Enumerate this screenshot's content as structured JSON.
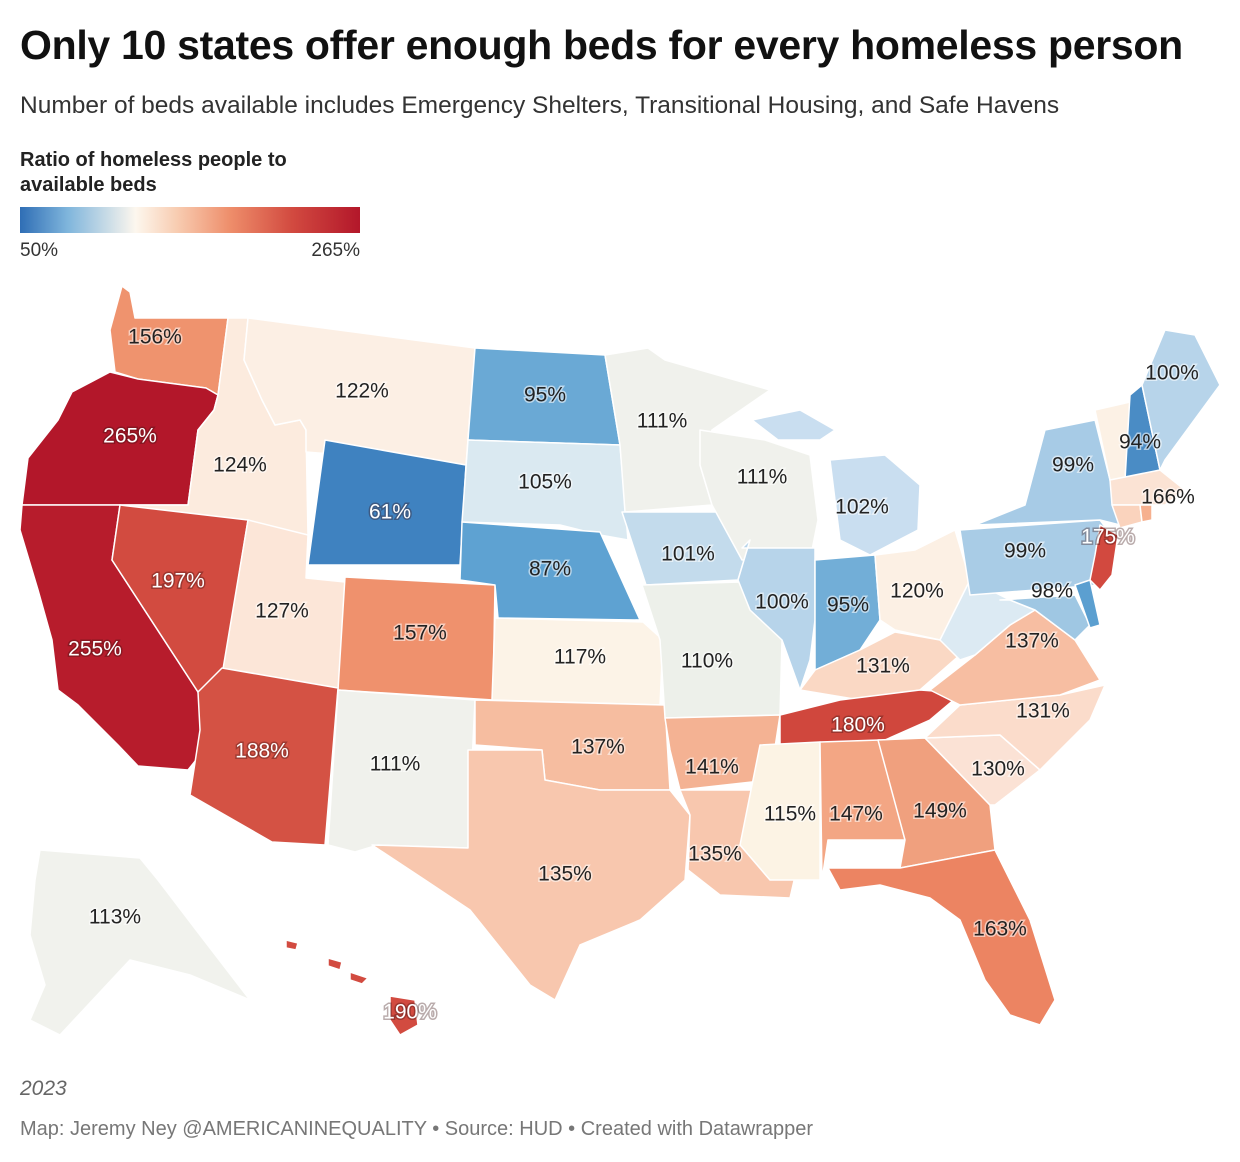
{
  "header": {
    "title": "Only 10 states offer enough beds for every homeless person",
    "subtitle": "Number of beds available includes Emergency Shelters, Transitional Housing, and Safe Havens"
  },
  "legend": {
    "title": "Ratio of homeless people to available beds",
    "min_label": "50%",
    "max_label": "265%",
    "min_value": 50,
    "max_value": 265,
    "colors": [
      "#2f6eb5",
      "#7fb5dc",
      "#fdf7ee",
      "#f8cdb2",
      "#ee8d6a",
      "#d24a40",
      "#b3172a"
    ]
  },
  "footer": {
    "year": "2023",
    "credit": "Map: Jeremy Ney @AMERICANINEQUALITY • Source: HUD • Created with Datawrapper"
  },
  "chart_data": {
    "type": "choropleth",
    "unit": "%",
    "states": [
      {
        "state": "WA",
        "value": 156,
        "label": "156%",
        "color": "#ef936e"
      },
      {
        "state": "OR",
        "value": 265,
        "label": "265%",
        "color": "#b3172a"
      },
      {
        "state": "CA",
        "value": 255,
        "label": "255%",
        "color": "#b71c2c"
      },
      {
        "state": "ID",
        "value": 124,
        "label": "124%",
        "color": "#fcebde"
      },
      {
        "state": "MT",
        "value": 122,
        "label": "122%",
        "color": "#fcefe4"
      },
      {
        "state": "NV",
        "value": 197,
        "label": "197%",
        "color": "#d24b40"
      },
      {
        "state": "UT",
        "value": 127,
        "label": "127%",
        "color": "#fce6d8"
      },
      {
        "state": "WY",
        "value": 61,
        "label": "61%",
        "color": "#3f82c0"
      },
      {
        "state": "CO",
        "value": 157,
        "label": "157%",
        "color": "#ef916d"
      },
      {
        "state": "AZ",
        "value": 188,
        "label": "188%",
        "color": "#d45244"
      },
      {
        "state": "NM",
        "value": 111,
        "label": "111%",
        "color": "#f0f1ec"
      },
      {
        "state": "ND",
        "value": 95,
        "label": "95%",
        "color": "#6aa9d5"
      },
      {
        "state": "SD",
        "value": 105,
        "label": "105%",
        "color": "#dae9f1"
      },
      {
        "state": "NE",
        "value": 87,
        "label": "87%",
        "color": "#5ea2d2"
      },
      {
        "state": "KS",
        "value": 117,
        "label": "117%",
        "color": "#fcf3e7"
      },
      {
        "state": "OK",
        "value": 137,
        "label": "137%",
        "color": "#f6bda0"
      },
      {
        "state": "TX",
        "value": 135,
        "label": "135%",
        "color": "#f8c7ae"
      },
      {
        "state": "MN",
        "value": 111,
        "label": "111%",
        "color": "#f0f1ec"
      },
      {
        "state": "IA",
        "value": 101,
        "label": "101%",
        "color": "#c3dbec"
      },
      {
        "state": "MO",
        "value": 110,
        "label": "110%",
        "color": "#edf0ea"
      },
      {
        "state": "AR",
        "value": 141,
        "label": "141%",
        "color": "#f4b293"
      },
      {
        "state": "LA",
        "value": 135,
        "label": "135%",
        "color": "#f8c7ae"
      },
      {
        "state": "WI",
        "value": 111,
        "label": "111%",
        "color": "#f0f1ec"
      },
      {
        "state": "IL",
        "value": 100,
        "label": "100%",
        "color": "#b7d4ea"
      },
      {
        "state": "MI",
        "value": 102,
        "label": "102%",
        "color": "#c9def0"
      },
      {
        "state": "IN",
        "value": 95,
        "label": "95%",
        "color": "#72aed7"
      },
      {
        "state": "OH",
        "value": 120,
        "label": "120%",
        "color": "#fcf0e4"
      },
      {
        "state": "KY",
        "value": 131,
        "label": "131%",
        "color": "#fad8c4"
      },
      {
        "state": "TN",
        "value": 180,
        "label": "180%",
        "color": "#d0473d"
      },
      {
        "state": "MS",
        "value": 115,
        "label": "115%",
        "color": "#fcf3e4"
      },
      {
        "state": "AL",
        "value": 147,
        "label": "147%",
        "color": "#f3a684"
      },
      {
        "state": "GA",
        "value": 149,
        "label": "149%",
        "color": "#f0a07e"
      },
      {
        "state": "FL",
        "value": 163,
        "label": "163%",
        "color": "#ec8462"
      },
      {
        "state": "SC",
        "value": 130,
        "label": "130%",
        "color": "#fbe2d5"
      },
      {
        "state": "NC",
        "value": 131,
        "label": "131%",
        "color": "#fbdccb"
      },
      {
        "state": "VA",
        "value": 137,
        "label": "137%",
        "color": "#f7bea2"
      },
      {
        "state": "WV",
        "value": 102,
        "label": "",
        "color": "#dceaf3"
      },
      {
        "state": "PA",
        "value": 99,
        "label": "99%",
        "color": "#a9cce6"
      },
      {
        "state": "NY",
        "value": 99,
        "label": "99%",
        "color": "#a7cbe6"
      },
      {
        "state": "NJ",
        "value": 175,
        "label": "175%",
        "color": "#d2493f"
      },
      {
        "state": "MD",
        "value": 98,
        "label": "98%",
        "color": "#9fc7e3"
      },
      {
        "state": "DE",
        "value": 80,
        "label": "",
        "color": "#5b9fd0"
      },
      {
        "state": "VT",
        "value": 120,
        "label": "",
        "color": "#fcf1e5"
      },
      {
        "state": "NH",
        "value": 94,
        "label": "94%",
        "color": "#4a8cc5"
      },
      {
        "state": "MA",
        "value": 166,
        "label": "166%",
        "color": "#fbe3d4"
      },
      {
        "state": "CT",
        "value": 125,
        "label": "",
        "color": "#fad3bd"
      },
      {
        "state": "RI",
        "value": 130,
        "label": "",
        "color": "#f6b08f"
      },
      {
        "state": "ME",
        "value": 100,
        "label": "100%",
        "color": "#b7d4ea"
      },
      {
        "state": "AK",
        "value": 113,
        "label": "113%",
        "color": "#f1f2ed"
      },
      {
        "state": "HI",
        "value": 190,
        "label": "190%",
        "color": "#d24b40"
      }
    ]
  }
}
